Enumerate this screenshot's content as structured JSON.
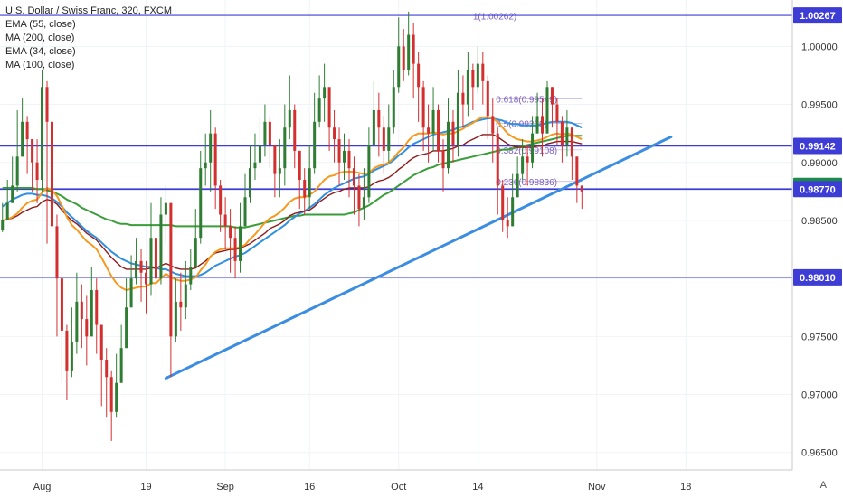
{
  "legend": {
    "title": "U.S. Dollar / Swiss Franc, 320, FXCM",
    "indicators": [
      "EMA (55, close)",
      "MA (200, close)",
      "EMA (34, close)",
      "MA (100, close)"
    ]
  },
  "corner_label": "A",
  "colors": {
    "up": "#2e7d32",
    "down": "#d32f2f",
    "ema55": "#8b1a1a",
    "ma200": "#3a9d3a",
    "ema34": "#f59a1e",
    "ma100": "#2f8fe0",
    "hline": "#3d3dd6",
    "trend": "#3a8de0",
    "fib": "#7b5fc0"
  },
  "chart_data": {
    "type": "candlestick",
    "title": "U.S. Dollar / Swiss Franc, 320, FXCM",
    "ylim": [
      0.9635,
      1.004
    ],
    "y_ticks": [
      "1.00000",
      "0.99500",
      "0.99000",
      "0.98500",
      "0.98000",
      "0.97500",
      "0.97000",
      "0.96500"
    ],
    "x_ticks": [
      {
        "label": "Aug",
        "idx": 8
      },
      {
        "label": "19",
        "idx": 29
      },
      {
        "label": "Sep",
        "idx": 45
      },
      {
        "label": "16",
        "idx": 62
      },
      {
        "label": "Oct",
        "idx": 80
      },
      {
        "label": "14",
        "idx": 96
      },
      {
        "label": "Nov",
        "idx": 120
      },
      {
        "label": "18",
        "idx": 138
      }
    ],
    "bars_total": 160,
    "closes": [
      0.985,
      0.9865,
      0.988,
      0.9905,
      0.9935,
      0.992,
      0.99,
      0.9885,
      0.9965,
      0.9935,
      0.9845,
      0.98,
      0.9755,
      0.972,
      0.9745,
      0.978,
      0.9765,
      0.975,
      0.979,
      0.976,
      0.973,
      0.9715,
      0.9685,
      0.971,
      0.974,
      0.9775,
      0.98,
      0.9815,
      0.9805,
      0.9795,
      0.9835,
      0.98,
      0.9855,
      0.9865,
      0.975,
      0.978,
      0.9775,
      0.9795,
      0.981,
      0.9835,
      0.9895,
      0.99,
      0.9925,
      0.988,
      0.9855,
      0.9845,
      0.9835,
      0.9815,
      0.9845,
      0.987,
      0.9895,
      0.99,
      0.9915,
      0.9935,
      0.9915,
      0.989,
      0.9895,
      0.993,
      0.9945,
      0.991,
      0.9885,
      0.987,
      0.9895,
      0.9935,
      0.9955,
      0.9965,
      0.993,
      0.992,
      0.99,
      0.991,
      0.9895,
      0.988,
      0.986,
      0.987,
      0.9915,
      0.9945,
      0.993,
      0.991,
      0.993,
      0.9965,
      1.0,
      0.998,
      1.001,
      0.9985,
      0.9965,
      0.993,
      0.9925,
      0.9945,
      0.991,
      0.9895,
      0.9935,
      0.9915,
      0.996,
      0.995,
      0.998,
      0.9965,
      0.9985,
      0.997,
      0.994,
      0.9925,
      0.988,
      0.985,
      0.9845,
      0.987,
      0.989,
      0.9905,
      0.99,
      0.9925,
      0.994,
      0.9925,
      0.9965,
      0.995,
      0.9935,
      0.9915,
      0.993,
      0.9905,
      0.988,
      0.9875
    ],
    "highs": [
      0.9865,
      0.9885,
      0.9905,
      0.9945,
      0.9955,
      0.994,
      0.9915,
      0.992,
      0.998,
      0.997,
      0.9935,
      0.9855,
      0.9805,
      0.976,
      0.9775,
      0.9805,
      0.9795,
      0.9785,
      0.981,
      0.98,
      0.976,
      0.974,
      0.972,
      0.9735,
      0.976,
      0.98,
      0.982,
      0.9835,
      0.9825,
      0.9815,
      0.9865,
      0.9845,
      0.987,
      0.988,
      0.9865,
      0.98,
      0.9805,
      0.9815,
      0.9825,
      0.986,
      0.991,
      0.9925,
      0.9945,
      0.993,
      0.9885,
      0.987,
      0.986,
      0.9845,
      0.9865,
      0.989,
      0.9915,
      0.9925,
      0.994,
      0.995,
      0.994,
      0.9915,
      0.992,
      0.995,
      0.9975,
      0.995,
      0.991,
      0.9895,
      0.9915,
      0.996,
      0.9975,
      0.9985,
      0.9965,
      0.9945,
      0.993,
      0.9925,
      0.992,
      0.9905,
      0.989,
      0.9895,
      0.993,
      0.997,
      0.996,
      0.994,
      0.995,
      0.998,
      1.0025,
      1.0015,
      1.003,
      1.002,
      0.9995,
      0.997,
      0.995,
      0.9965,
      0.995,
      0.992,
      0.9955,
      0.9945,
      0.998,
      0.9975,
      0.9995,
      0.9985,
      1.0,
      0.9995,
      0.9975,
      0.9955,
      0.993,
      0.9885,
      0.987,
      0.989,
      0.9905,
      0.992,
      0.9915,
      0.994,
      0.996,
      0.9955,
      0.997,
      0.9965,
      0.9955,
      0.994,
      0.9945,
      0.993,
      0.9905,
      0.988
    ],
    "lows": [
      0.984,
      0.985,
      0.9865,
      0.9875,
      0.9905,
      0.989,
      0.9875,
      0.9865,
      0.9875,
      0.983,
      0.9805,
      0.975,
      0.971,
      0.9695,
      0.9715,
      0.9735,
      0.974,
      0.9725,
      0.975,
      0.9735,
      0.969,
      0.968,
      0.966,
      0.968,
      0.9715,
      0.975,
      0.978,
      0.9795,
      0.978,
      0.977,
      0.9785,
      0.978,
      0.9795,
      0.983,
      0.9715,
      0.9745,
      0.9755,
      0.9765,
      0.979,
      0.9815,
      0.983,
      0.988,
      0.9875,
      0.986,
      0.984,
      0.9825,
      0.9805,
      0.98,
      0.9805,
      0.9845,
      0.9865,
      0.9885,
      0.9895,
      0.9905,
      0.9895,
      0.987,
      0.987,
      0.988,
      0.992,
      0.9895,
      0.986,
      0.9855,
      0.986,
      0.989,
      0.993,
      0.9935,
      0.991,
      0.99,
      0.988,
      0.9885,
      0.987,
      0.9855,
      0.9845,
      0.985,
      0.9865,
      0.9915,
      0.9905,
      0.989,
      0.99,
      0.9925,
      0.996,
      0.997,
      0.9975,
      0.9955,
      0.9935,
      0.991,
      0.99,
      0.991,
      0.99,
      0.9875,
      0.989,
      0.99,
      0.9905,
      0.993,
      0.994,
      0.9945,
      0.996,
      0.995,
      0.992,
      0.99,
      0.9855,
      0.984,
      0.9835,
      0.985,
      0.9875,
      0.9885,
      0.988,
      0.9895,
      0.9925,
      0.9905,
      0.993,
      0.993,
      0.9915,
      0.99,
      0.9905,
      0.9885,
      0.9865,
      0.986
    ],
    "ema55": [
      0.985,
      0.9851,
      0.9852,
      0.9854,
      0.9857,
      0.9859,
      0.9861,
      0.9862,
      0.9866,
      0.9868,
      0.9867,
      0.9864,
      0.9859,
      0.9854,
      0.985,
      0.9847,
      0.9843,
      0.9839,
      0.9836,
      0.9833,
      0.9828,
      0.9823,
      0.9818,
      0.9814,
      0.981,
      0.9808,
      0.9808,
      0.9808,
      0.9808,
      0.9808,
      0.9809,
      0.9809,
      0.9811,
      0.9813,
      0.9811,
      0.9809,
      0.9808,
      0.9808,
      0.9808,
      0.9809,
      0.9812,
      0.9815,
      0.9819,
      0.9822,
      0.9823,
      0.9824,
      0.9825,
      0.9825,
      0.9826,
      0.9828,
      0.983,
      0.9833,
      0.9836,
      0.9839,
      0.9843,
      0.9845,
      0.9847,
      0.985,
      0.9854,
      0.9856,
      0.9857,
      0.9858,
      0.9859,
      0.9862,
      0.9866,
      0.9869,
      0.9872,
      0.9874,
      0.9875,
      0.9877,
      0.9878,
      0.9878,
      0.9878,
      0.9878,
      0.9879,
      0.9882,
      0.9884,
      0.9885,
      0.9887,
      0.989,
      0.9894,
      0.9897,
      0.9901,
      0.9904,
      0.9906,
      0.9907,
      0.9908,
      0.991,
      0.991,
      0.991,
      0.9911,
      0.9912,
      0.9914,
      0.9915,
      0.9918,
      0.992,
      0.9922,
      0.9924,
      0.9924,
      0.9924,
      0.9922,
      0.9919,
      0.9916,
      0.9914,
      0.9913,
      0.9913,
      0.9913,
      0.9913,
      0.9914,
      0.9914,
      0.9916,
      0.9917,
      0.9918,
      0.9918,
      0.9918,
      0.9918,
      0.9917,
      0.9916
    ],
    "ema34": [
      0.985,
      0.9851,
      0.9853,
      0.9856,
      0.9861,
      0.9865,
      0.9867,
      0.9868,
      0.9874,
      0.9878,
      0.9876,
      0.9871,
      0.9863,
      0.9853,
      0.9846,
      0.9842,
      0.9837,
      0.9832,
      0.9829,
      0.9825,
      0.9818,
      0.981,
      0.9802,
      0.9796,
      0.9792,
      0.979,
      0.9791,
      0.9792,
      0.9793,
      0.9793,
      0.9796,
      0.9796,
      0.98,
      0.9804,
      0.9801,
      0.9799,
      0.9798,
      0.9798,
      0.9799,
      0.9801,
      0.9807,
      0.9812,
      0.9819,
      0.9823,
      0.9825,
      0.9826,
      0.9826,
      0.9826,
      0.9827,
      0.9829,
      0.9834,
      0.9838,
      0.9843,
      0.9848,
      0.9852,
      0.9854,
      0.9857,
      0.9861,
      0.9866,
      0.9869,
      0.987,
      0.987,
      0.9872,
      0.9875,
      0.988,
      0.9885,
      0.9888,
      0.9889,
      0.9891,
      0.9892,
      0.9892,
      0.9892,
      0.9891,
      0.989,
      0.9891,
      0.9895,
      0.9897,
      0.9898,
      0.99,
      0.9904,
      0.9909,
      0.9913,
      0.9919,
      0.9923,
      0.9925,
      0.9925,
      0.9925,
      0.9926,
      0.9925,
      0.9924,
      0.9925,
      0.9925,
      0.9927,
      0.9929,
      0.9932,
      0.9934,
      0.9937,
      0.9939,
      0.9939,
      0.9938,
      0.9935,
      0.993,
      0.9925,
      0.9922,
      0.992,
      0.9919,
      0.9918,
      0.9918,
      0.9919,
      0.992,
      0.9922,
      0.9924,
      0.9925,
      0.9924,
      0.9925,
      0.9924,
      0.9922,
      0.992
    ],
    "ma100": [
      0.9862,
      0.9865,
      0.9868,
      0.987,
      0.9872,
      0.9873,
      0.9873,
      0.9872,
      0.9872,
      0.9871,
      0.9869,
      0.9866,
      0.9862,
      0.9857,
      0.9853,
      0.9849,
      0.9845,
      0.9841,
      0.9838,
      0.9835,
      0.9831,
      0.9827,
      0.9823,
      0.982,
      0.9817,
      0.9815,
      0.9813,
      0.9812,
      0.9811,
      0.981,
      0.981,
      0.9809,
      0.9808,
      0.9808,
      0.9806,
      0.9804,
      0.9803,
      0.9802,
      0.9802,
      0.9802,
      0.9803,
      0.9805,
      0.9808,
      0.9811,
      0.9813,
      0.9815,
      0.9817,
      0.9819,
      0.982,
      0.9822,
      0.9825,
      0.9828,
      0.9831,
      0.9834,
      0.9837,
      0.984,
      0.9843,
      0.9846,
      0.985,
      0.9853,
      0.9856,
      0.9858,
      0.9861,
      0.9864,
      0.9868,
      0.9872,
      0.9875,
      0.9878,
      0.988,
      0.9882,
      0.9884,
      0.9886,
      0.9887,
      0.9888,
      0.989,
      0.9893,
      0.9895,
      0.9897,
      0.9899,
      0.9902,
      0.9906,
      0.9909,
      0.9913,
      0.9916,
      0.9918,
      0.992,
      0.9922,
      0.9924,
      0.9925,
      0.9926,
      0.9927,
      0.9928,
      0.993,
      0.9931,
      0.9933,
      0.9935,
      0.9936,
      0.9937,
      0.9938,
      0.9938,
      0.9937,
      0.9936,
      0.9934,
      0.9933,
      0.9933,
      0.9932,
      0.9932,
      0.9932,
      0.9932,
      0.9933,
      0.9934,
      0.9935,
      0.9935,
      0.9935,
      0.9935,
      0.9934,
      0.9932,
      0.993
    ],
    "ma200": [
      0.9878,
      0.9878,
      0.9878,
      0.9878,
      0.9878,
      0.9878,
      0.9878,
      0.9877,
      0.9877,
      0.9876,
      0.9875,
      0.9873,
      0.9871,
      0.9868,
      0.9866,
      0.9864,
      0.9861,
      0.9859,
      0.9857,
      0.9855,
      0.9853,
      0.9851,
      0.985,
      0.9848,
      0.9847,
      0.9847,
      0.9846,
      0.9846,
      0.9846,
      0.9846,
      0.9846,
      0.9846,
      0.9846,
      0.9846,
      0.9846,
      0.9845,
      0.9845,
      0.9845,
      0.9845,
      0.9845,
      0.9845,
      0.9845,
      0.9845,
      0.9845,
      0.9845,
      0.9845,
      0.9845,
      0.9844,
      0.9844,
      0.9844,
      0.9845,
      0.9846,
      0.9847,
      0.9848,
      0.9849,
      0.985,
      0.9851,
      0.9852,
      0.9853,
      0.9854,
      0.9854,
      0.9855,
      0.9855,
      0.9855,
      0.9855,
      0.9855,
      0.9855,
      0.9855,
      0.9855,
      0.9855,
      0.9856,
      0.9857,
      0.9859,
      0.9861,
      0.9863,
      0.9866,
      0.9869,
      0.9872,
      0.9874,
      0.9877,
      0.988,
      0.9883,
      0.9886,
      0.9889,
      0.9891,
      0.9893,
      0.9895,
      0.9896,
      0.9898,
      0.9899,
      0.99,
      0.9901,
      0.9902,
      0.9903,
      0.9904,
      0.9905,
      0.9906,
      0.9907,
      0.9908,
      0.9909,
      0.991,
      0.9911,
      0.9911,
      0.9912,
      0.9913,
      0.9914,
      0.9915,
      0.9916,
      0.9917,
      0.9918,
      0.9919,
      0.992,
      0.9921,
      0.9922,
      0.9923,
      0.9923,
      0.9923,
      0.9923
    ],
    "horizontal_levels": [
      {
        "value": 1.00267,
        "label": "1.00267",
        "width": 1.2
      },
      {
        "value": 0.99142,
        "label": "0.99142",
        "width": 1.4
      },
      {
        "value": 0.98798,
        "label": "0.98798",
        "width": 0,
        "tag_color": "#1b8a4a"
      },
      {
        "value": 0.9877,
        "label": "0.98770",
        "width": 1.8
      },
      {
        "value": 0.9801,
        "label": "0.98010",
        "width": 1.2
      }
    ],
    "fib_levels": [
      {
        "value": 1.00262,
        "label": "1(1.00262)"
      },
      {
        "value": 0.99549,
        "label": "0.618(0.99549)"
      },
      {
        "value": 0.99338,
        "label": "0.5(0.99338)"
      },
      {
        "value": 0.99108,
        "label": "0.382(0.99108)"
      },
      {
        "value": 0.98836,
        "label": "0.236(0.98836)"
      }
    ],
    "trendline": [
      {
        "idx": 33,
        "value": 0.9714
      },
      {
        "idx": 135,
        "value": 0.9922
      }
    ]
  }
}
